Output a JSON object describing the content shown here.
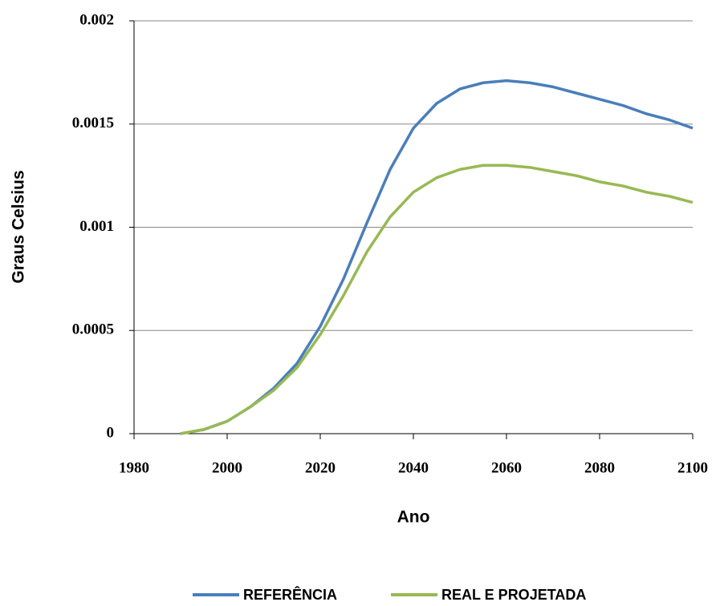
{
  "chart_data": {
    "type": "line",
    "x": [
      1990,
      1995,
      2000,
      2005,
      2010,
      2015,
      2020,
      2025,
      2030,
      2035,
      2040,
      2045,
      2050,
      2055,
      2060,
      2065,
      2070,
      2075,
      2080,
      2085,
      2090,
      2095,
      2100
    ],
    "series": [
      {
        "name": "REFERÊNCIA",
        "color": "#4a7ebb",
        "values": [
          0,
          2e-05,
          6e-05,
          0.00013,
          0.00022,
          0.00034,
          0.00052,
          0.00075,
          0.00102,
          0.00128,
          0.00148,
          0.0016,
          0.00167,
          0.0017,
          0.00171,
          0.0017,
          0.00168,
          0.00165,
          0.00162,
          0.00159,
          0.00155,
          0.00152,
          0.00148
        ]
      },
      {
        "name": "REAL E PROJETADA",
        "color": "#98b954",
        "values": [
          0,
          2e-05,
          6e-05,
          0.00013,
          0.00021,
          0.00032,
          0.00048,
          0.00067,
          0.00088,
          0.00105,
          0.00117,
          0.00124,
          0.00128,
          0.0013,
          0.0013,
          0.00129,
          0.00127,
          0.00125,
          0.00122,
          0.0012,
          0.00117,
          0.00115,
          0.00112
        ]
      }
    ],
    "xlabel": "Ano",
    "ylabel": "Graus Celsius",
    "xlim": [
      1980,
      2100
    ],
    "xticks": [
      1980,
      2000,
      2020,
      2040,
      2060,
      2080,
      2100
    ],
    "ylim": [
      0,
      0.002
    ],
    "yticks": [
      0,
      0.0005,
      0.001,
      0.0015,
      0.002
    ],
    "grid": true,
    "legend": "bottom"
  }
}
